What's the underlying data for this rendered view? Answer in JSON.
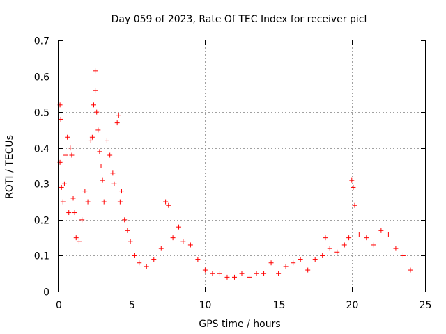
{
  "chart_data": {
    "type": "scatter",
    "title": "Day 059 of 2023, Rate Of TEC Index for receiver picl",
    "xlabel": "GPS time / hours",
    "ylabel": "ROTI / TECUs",
    "xlim": [
      0,
      25
    ],
    "ylim": [
      0,
      0.7
    ],
    "x_ticks": [
      "0",
      "5",
      "10",
      "15",
      "20",
      "25"
    ],
    "y_ticks": [
      "0",
      "0.1",
      "0.2",
      "0.3",
      "0.4",
      "0.5",
      "0.6",
      "0.7"
    ],
    "grid": true,
    "marker": "plus",
    "color": "#ff0000",
    "series": [
      {
        "x": [
          0.1,
          0.1,
          0.15,
          0.2,
          0.3,
          0.4,
          0.5,
          0.6,
          0.7,
          0.8,
          0.9,
          1.0,
          1.1,
          1.2,
          1.4,
          1.6,
          1.8,
          2.0,
          2.2,
          2.3,
          2.4,
          2.5,
          2.5,
          2.6,
          2.7,
          2.8,
          2.9,
          3.0,
          3.1,
          3.3,
          3.5,
          3.7,
          3.8,
          4.0,
          4.1,
          4.2,
          4.3,
          4.5,
          4.7,
          4.9,
          5.2,
          5.5,
          6.0,
          6.5,
          7.0,
          7.3,
          7.5,
          7.8,
          8.2,
          8.5,
          9.0,
          9.5,
          10.0,
          10.5,
          11.0,
          11.5,
          12.0,
          12.5,
          13.0,
          13.5,
          14.0,
          14.5,
          15.0,
          15.5,
          16.0,
          16.5,
          17.0,
          17.5,
          18.0,
          18.2,
          18.5,
          19.0,
          19.5,
          19.8,
          20.0,
          20.1,
          20.2,
          20.5,
          21.0,
          21.5,
          22.0,
          22.5,
          23.0,
          23.5,
          24.0
        ],
        "y": [
          0.52,
          0.36,
          0.48,
          0.29,
          0.25,
          0.3,
          0.38,
          0.43,
          0.22,
          0.4,
          0.38,
          0.26,
          0.22,
          0.15,
          0.14,
          0.2,
          0.28,
          0.25,
          0.42,
          0.43,
          0.52,
          0.615,
          0.56,
          0.5,
          0.45,
          0.39,
          0.35,
          0.31,
          0.25,
          0.42,
          0.38,
          0.33,
          0.3,
          0.47,
          0.49,
          0.25,
          0.28,
          0.2,
          0.17,
          0.14,
          0.1,
          0.08,
          0.07,
          0.09,
          0.12,
          0.25,
          0.24,
          0.15,
          0.18,
          0.14,
          0.13,
          0.09,
          0.06,
          0.05,
          0.05,
          0.04,
          0.04,
          0.05,
          0.04,
          0.05,
          0.05,
          0.08,
          0.05,
          0.07,
          0.08,
          0.09,
          0.06,
          0.09,
          0.1,
          0.15,
          0.12,
          0.11,
          0.13,
          0.15,
          0.31,
          0.29,
          0.24,
          0.16,
          0.15,
          0.13,
          0.17,
          0.16,
          0.12,
          0.1,
          0.06
        ]
      }
    ]
  }
}
